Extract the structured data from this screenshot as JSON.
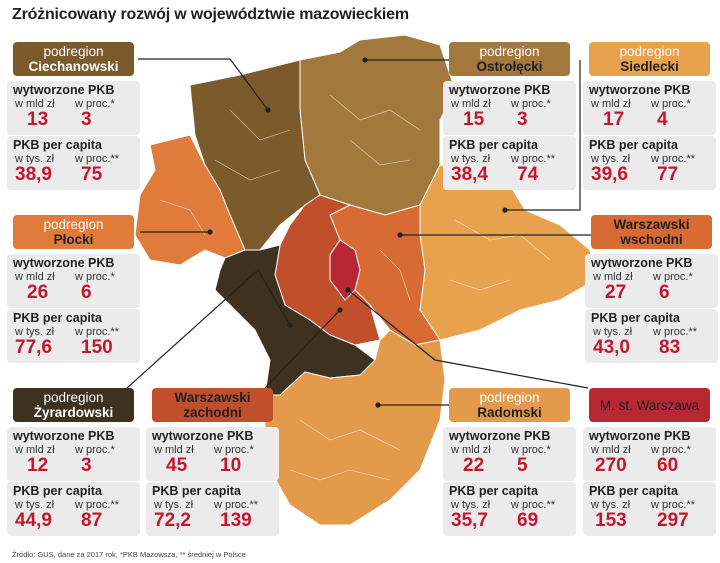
{
  "title": "Zróżnicowany rozwój w województwie mazowieckiem",
  "source": "Źródło: GUS, dane za 2017 rok, *PKB Mazowsza, ** średniej w Polsce",
  "labels": {
    "pkb_title": "wytworzone PKB",
    "pkb_unit_abs": "w mld zł",
    "pkb_unit_pct": "w proc.*",
    "pc_title": "PKB per capita",
    "pc_unit_abs": "w tys. zł",
    "pc_unit_pct": "w proc.**"
  },
  "colors": {
    "ciechanowski": "#7b5a2b",
    "ostrolecki": "#a2783d",
    "siedlecki": "#e8a24e",
    "plocki": "#e07b3c",
    "warszawski_wschodni": "#d86a33",
    "zyrardowski": "#3f3120",
    "warszawski_zachodni": "#c24f2c",
    "warszawa": "#b72834",
    "radomski": "#e39a4a",
    "value_red": "#c4172d"
  },
  "regions": [
    {
      "id": "ciechanowski",
      "top": "podregion",
      "bottom": "Ciechanowski",
      "pkb_abs": "13",
      "pkb_pct": "3",
      "pc_abs": "38,9",
      "pc_pct": "75"
    },
    {
      "id": "ostrolecki",
      "top": "podregion",
      "bottom": "Ostrołęcki",
      "pkb_abs": "15",
      "pkb_pct": "3",
      "pc_abs": "38,4",
      "pc_pct": "74"
    },
    {
      "id": "siedlecki",
      "top": "podregion",
      "bottom": "Siedlecki",
      "pkb_abs": "17",
      "pkb_pct": "4",
      "pc_abs": "39,6",
      "pc_pct": "77"
    },
    {
      "id": "plocki",
      "top": "podregion",
      "bottom": "Płocki",
      "pkb_abs": "26",
      "pkb_pct": "6",
      "pc_abs": "77,6",
      "pc_pct": "150"
    },
    {
      "id": "warszawski_wschodni",
      "top": "Warszawski",
      "bottom": "wschodni",
      "pkb_abs": "27",
      "pkb_pct": "6",
      "pc_abs": "43,0",
      "pc_pct": "83"
    },
    {
      "id": "zyrardowski",
      "top": "podregion",
      "bottom": "Żyrardowski",
      "pkb_abs": "12",
      "pkb_pct": "3",
      "pc_abs": "44,9",
      "pc_pct": "87"
    },
    {
      "id": "warszawski_zachodni",
      "top": "Warszawski",
      "bottom": "zachodni",
      "pkb_abs": "45",
      "pkb_pct": "10",
      "pc_abs": "72,2",
      "pc_pct": "139"
    },
    {
      "id": "radomski",
      "top": "podregion",
      "bottom": "Radomski",
      "pkb_abs": "22",
      "pkb_pct": "5",
      "pc_abs": "35,7",
      "pc_pct": "69"
    },
    {
      "id": "warszawa",
      "top": "",
      "bottom": "M. st. Warszawa",
      "pkb_abs": "270",
      "pkb_pct": "60",
      "pc_abs": "153",
      "pc_pct": "297"
    }
  ]
}
